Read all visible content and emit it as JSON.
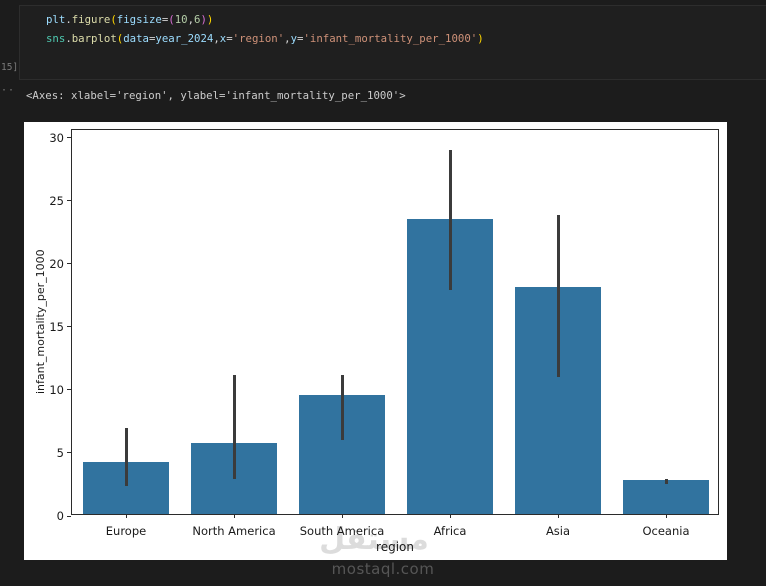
{
  "editor": {
    "cell": {
      "execution_label": "15]",
      "output_gutter_dots": "··"
    },
    "syntax_colors": {
      "module": "#4ec9b0",
      "variable": "#9cdcfe",
      "function": "#dcdcaa",
      "punct": "#d4d4d4",
      "bracket1": "#ffd700",
      "bracket2": "#da70d6",
      "number": "#b5cea8",
      "string": "#ce9178"
    },
    "code_lines": [
      [
        {
          "t": "plt",
          "c": "variable"
        },
        {
          "t": ".",
          "c": "punct"
        },
        {
          "t": "figure",
          "c": "function"
        },
        {
          "t": "(",
          "c": "bracket1"
        },
        {
          "t": "figsize",
          "c": "variable"
        },
        {
          "t": "=",
          "c": "punct"
        },
        {
          "t": "(",
          "c": "bracket2"
        },
        {
          "t": "10",
          "c": "number"
        },
        {
          "t": ",",
          "c": "punct"
        },
        {
          "t": "6",
          "c": "number"
        },
        {
          "t": ")",
          "c": "bracket2"
        },
        {
          "t": ")",
          "c": "bracket1"
        }
      ],
      [
        {
          "t": "sns",
          "c": "module"
        },
        {
          "t": ".",
          "c": "punct"
        },
        {
          "t": "barplot",
          "c": "function"
        },
        {
          "t": "(",
          "c": "bracket1"
        },
        {
          "t": "data",
          "c": "variable"
        },
        {
          "t": "=",
          "c": "punct"
        },
        {
          "t": "year_2024",
          "c": "variable"
        },
        {
          "t": ",",
          "c": "punct"
        },
        {
          "t": "x",
          "c": "variable"
        },
        {
          "t": "=",
          "c": "punct"
        },
        {
          "t": "'region'",
          "c": "string"
        },
        {
          "t": ",",
          "c": "punct"
        },
        {
          "t": "y",
          "c": "variable"
        },
        {
          "t": "=",
          "c": "punct"
        },
        {
          "t": "'infant_mortality_per_1000'",
          "c": "string"
        },
        {
          "t": ")",
          "c": "bracket1"
        }
      ]
    ],
    "output_text": "<Axes: xlabel='region', ylabel='infant_mortality_per_1000'>"
  },
  "chart_data": {
    "type": "bar",
    "title": "",
    "categories": [
      "Europe",
      "North America",
      "South America",
      "Africa",
      "Asia",
      "Oceania"
    ],
    "values": [
      4.1,
      5.6,
      9.4,
      23.4,
      18.0,
      2.7
    ],
    "error_bars": [
      [
        2.4,
        7.0
      ],
      [
        2.9,
        11.2
      ],
      [
        6.0,
        11.2
      ],
      [
        17.9,
        29.0
      ],
      [
        11.0,
        23.9
      ],
      [
        2.5,
        2.9
      ]
    ],
    "xlabel": "region",
    "ylabel": "infant_mortality_per_1000",
    "yticks": [
      0,
      5,
      10,
      15,
      20,
      25,
      30
    ],
    "ylim": [
      0,
      30.6
    ],
    "grid": false,
    "legend": "none",
    "bar_color": "#31739f",
    "error_color": "#3b3b3b",
    "background": "#ffffff"
  },
  "watermark": {
    "logo": "مستقل",
    "domain": "mostaql.com"
  }
}
